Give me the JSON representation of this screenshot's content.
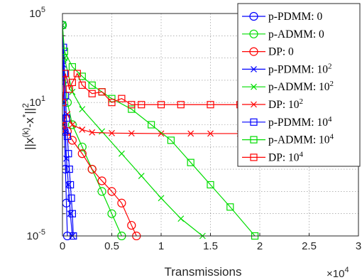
{
  "chart_data": {
    "type": "line",
    "title": "",
    "xlabel": "Transmissions",
    "ylabel": "||x(k)-x*||2",
    "ylabel_parts": {
      "base": "||x",
      "sup1": "(k)",
      "mid": "-x",
      "sup2": "*",
      "end": "||",
      "sup3": "2"
    },
    "x_multiplier": {
      "base": "×10",
      "exp": "4"
    },
    "xlim": [
      0,
      30000
    ],
    "ylim": [
      1e-05,
      100000
    ],
    "yscale": "log",
    "grid": true,
    "legend_position": "top-right",
    "x_ticks": [
      {
        "value": 0,
        "label": "0"
      },
      {
        "value": 5000,
        "label": "0.5"
      },
      {
        "value": 10000,
        "label": "1"
      },
      {
        "value": 15000,
        "label": "1.5"
      },
      {
        "value": 20000,
        "label": "2"
      },
      {
        "value": 25000,
        "label": "2.5"
      },
      {
        "value": 30000,
        "label": "3"
      }
    ],
    "y_ticks": [
      {
        "value": 1e-05,
        "base": "10",
        "exp": "-5"
      },
      {
        "value": 10,
        "base": "10",
        "exp": "1"
      },
      {
        "value": 100000,
        "base": "10",
        "exp": "5"
      }
    ],
    "series": [
      {
        "name": "p-PDMM: 0",
        "label": {
          "text": "p-PDMM: 0",
          "sup": ""
        },
        "color": "#0000ff",
        "marker": "circle",
        "x": [
          0,
          100,
          200,
          300,
          400,
          500
        ],
        "y": [
          30000,
          100,
          0.5,
          0.01,
          0.0003,
          1e-05
        ]
      },
      {
        "name": "p-ADMM: 0",
        "label": {
          "text": "p-ADMM: 0",
          "sup": ""
        },
        "color": "#00dd00",
        "marker": "circle",
        "x": [
          0,
          100,
          500,
          1000,
          2000,
          3000,
          4000,
          5000,
          6000
        ],
        "y": [
          30000,
          1000,
          10,
          1,
          0.1,
          0.01,
          0.001,
          0.0001,
          1e-05
        ]
      },
      {
        "name": "DP: 0",
        "label": {
          "text": "DP: 0",
          "sup": ""
        },
        "color": "#ff0000",
        "marker": "circle",
        "x": [
          0,
          500,
          1000,
          2000,
          3000,
          4000,
          5000,
          6000,
          7000,
          7500
        ],
        "y": [
          1,
          0.5,
          0.2,
          0.05,
          0.01,
          0.003,
          0.001,
          0.0003,
          3e-05,
          1e-05
        ]
      },
      {
        "name": "p-PDMM: 10^2",
        "label": {
          "text": "p-PDMM: 10",
          "sup": "2"
        },
        "color": "#0000ff",
        "marker": "x",
        "x": [
          0,
          100,
          200,
          300,
          400,
          600,
          800,
          1000
        ],
        "y": [
          30000,
          500,
          10,
          0.5,
          0.03,
          0.002,
          0.0001,
          1e-05
        ]
      },
      {
        "name": "p-ADMM: 10^2",
        "label": {
          "text": "p-ADMM: 10",
          "sup": "2"
        },
        "color": "#00dd00",
        "marker": "x",
        "x": [
          0,
          200,
          1000,
          2000,
          4000,
          6000,
          8000,
          10000,
          12000,
          14200
        ],
        "y": [
          30000,
          1000,
          30,
          5,
          0.5,
          0.05,
          0.005,
          0.0005,
          6e-05,
          1e-05
        ]
      },
      {
        "name": "DP: 10^2",
        "label": {
          "text": "DP: 10",
          "sup": "2"
        },
        "color": "#ff0000",
        "marker": "x",
        "x": [
          0,
          500,
          1000,
          2000,
          3000,
          5000,
          7000,
          10000,
          13000,
          15000,
          18000,
          21000,
          24000,
          30000
        ],
        "y": [
          1,
          3,
          1,
          0.6,
          0.45,
          0.42,
          0.41,
          0.4,
          0.4,
          0.4,
          0.4,
          0.4,
          0.4,
          0.4
        ]
      },
      {
        "name": "p-PDMM: 10^4",
        "label": {
          "text": "p-PDMM: 10",
          "sup": "4"
        },
        "color": "#0000ff",
        "marker": "square",
        "x": [
          0,
          100,
          200,
          300,
          400,
          500,
          600,
          700,
          800,
          900,
          1000,
          1100
        ],
        "y": [
          30000,
          3000,
          200,
          20,
          2,
          0.3,
          0.05,
          0.01,
          0.002,
          0.0005,
          0.0001,
          1e-05
        ]
      },
      {
        "name": "p-ADMM: 10^4",
        "label": {
          "text": "p-ADMM: 10",
          "sup": "4"
        },
        "color": "#00dd00",
        "marker": "square",
        "x": [
          0,
          200,
          1000,
          2000,
          3000,
          4000,
          5000,
          7000,
          9000,
          11000,
          13000,
          15000,
          17000,
          19500
        ],
        "y": [
          30000,
          2000,
          400,
          150,
          60,
          30,
          15,
          5,
          1,
          0.2,
          0.02,
          0.002,
          0.0002,
          1e-05
        ]
      },
      {
        "name": "DP: 10^4",
        "label": {
          "text": "DP: 10",
          "sup": "4"
        },
        "color": "#ff0000",
        "marker": "square",
        "x": [
          0,
          300,
          700,
          1000,
          1500,
          2000,
          3000,
          4000,
          5000,
          6000,
          7000,
          8000,
          10000,
          12000,
          15000,
          18000,
          21000,
          24000,
          30000
        ],
        "y": [
          10,
          200,
          40,
          80,
          200,
          60,
          25,
          30,
          10,
          15,
          8,
          8,
          8,
          8,
          8,
          8,
          8,
          8,
          8
        ]
      }
    ]
  }
}
